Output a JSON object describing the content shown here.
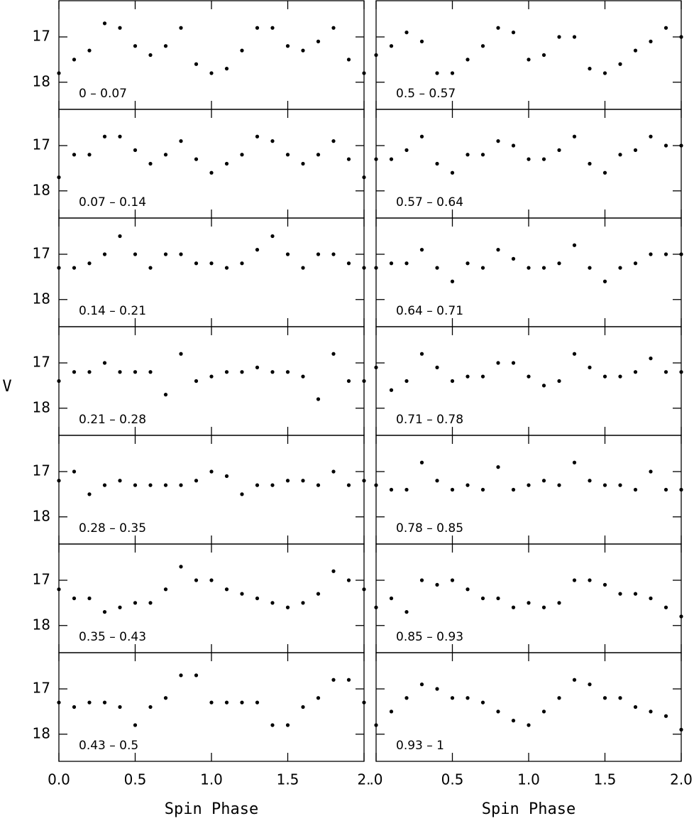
{
  "ylabel": "V",
  "chart_data": [
    {
      "type": "scatter",
      "annotation": "0 – 0.07",
      "ylim": [
        18.6,
        16.2
      ],
      "yticks": [
        17,
        18
      ],
      "ytick_labels": true,
      "xlim": [
        0,
        2
      ],
      "xticks": [
        0,
        0.5,
        1,
        1.5,
        2
      ],
      "x": [
        0,
        0.1,
        0.2,
        0.3,
        0.4,
        0.5,
        0.6,
        0.7,
        0.8,
        0.9,
        1,
        1.1,
        1.2,
        1.3,
        1.4,
        1.5,
        1.6,
        1.7,
        1.8,
        1.9,
        2
      ],
      "values": [
        17.8,
        17.5,
        17.3,
        16.7,
        16.8,
        17.2,
        17.4,
        17.2,
        16.8,
        17.6,
        17.8,
        17.7,
        17.3,
        16.8,
        16.8,
        17.2,
        17.3,
        17.1,
        16.8,
        17.5,
        17.8
      ]
    },
    {
      "type": "scatter",
      "annotation": "0.07 – 0.14",
      "ylim": [
        18.6,
        16.2
      ],
      "yticks": [
        17,
        18
      ],
      "ytick_labels": true,
      "xlim": [
        0,
        2
      ],
      "xticks": [
        0,
        0.5,
        1,
        1.5,
        2
      ],
      "x": [
        0,
        0.1,
        0.2,
        0.3,
        0.4,
        0.5,
        0.6,
        0.7,
        0.8,
        0.9,
        1,
        1.1,
        1.2,
        1.3,
        1.4,
        1.5,
        1.6,
        1.7,
        1.8,
        1.9,
        2
      ],
      "values": [
        17.7,
        17.2,
        17.2,
        16.8,
        16.8,
        17.1,
        17.4,
        17.2,
        16.9,
        17.3,
        17.6,
        17.4,
        17.2,
        16.8,
        16.9,
        17.2,
        17.4,
        17.2,
        16.9,
        17.3,
        17.7
      ]
    },
    {
      "type": "scatter",
      "annotation": "0.14 – 0.21",
      "ylim": [
        18.6,
        16.2
      ],
      "yticks": [
        17,
        18
      ],
      "ytick_labels": true,
      "xlim": [
        0,
        2
      ],
      "xticks": [
        0,
        0.5,
        1,
        1.5,
        2
      ],
      "x": [
        0,
        0.1,
        0.2,
        0.3,
        0.4,
        0.5,
        0.6,
        0.7,
        0.8,
        0.9,
        1,
        1.1,
        1.2,
        1.3,
        1.4,
        1.5,
        1.6,
        1.7,
        1.8,
        1.9,
        2
      ],
      "values": [
        17.3,
        17.3,
        17.2,
        17.0,
        16.6,
        17.0,
        17.3,
        17.0,
        17.0,
        17.2,
        17.2,
        17.3,
        17.2,
        16.9,
        16.6,
        17.0,
        17.3,
        17.0,
        17.0,
        17.2,
        17.3
      ]
    },
    {
      "type": "scatter",
      "annotation": "0.21 – 0.28",
      "ylim": [
        18.6,
        16.2
      ],
      "yticks": [
        17,
        18
      ],
      "ytick_labels": true,
      "xlim": [
        0,
        2
      ],
      "xticks": [
        0,
        0.5,
        1,
        1.5,
        2
      ],
      "x": [
        0,
        0.1,
        0.2,
        0.3,
        0.4,
        0.5,
        0.6,
        0.7,
        0.8,
        0.9,
        1,
        1.1,
        1.2,
        1.3,
        1.4,
        1.5,
        1.6,
        1.7,
        1.8,
        1.9,
        2
      ],
      "values": [
        17.4,
        17.2,
        17.2,
        17.0,
        17.2,
        17.2,
        17.2,
        17.7,
        16.8,
        17.4,
        17.3,
        17.2,
        17.2,
        17.1,
        17.2,
        17.2,
        17.3,
        17.8,
        16.8,
        17.4,
        17.4
      ]
    },
    {
      "type": "scatter",
      "annotation": "0.28 – 0.35",
      "ylim": [
        18.6,
        16.2
      ],
      "yticks": [
        17,
        18
      ],
      "ytick_labels": true,
      "xlim": [
        0,
        2
      ],
      "xticks": [
        0,
        0.5,
        1,
        1.5,
        2
      ],
      "x": [
        0,
        0.1,
        0.2,
        0.3,
        0.4,
        0.5,
        0.6,
        0.7,
        0.8,
        0.9,
        1,
        1.1,
        1.2,
        1.3,
        1.4,
        1.5,
        1.6,
        1.7,
        1.8,
        1.9,
        2
      ],
      "values": [
        17.2,
        17.0,
        17.5,
        17.3,
        17.2,
        17.3,
        17.3,
        17.3,
        17.3,
        17.2,
        17.0,
        17.1,
        17.5,
        17.3,
        17.3,
        17.2,
        17.2,
        17.3,
        17.0,
        17.3,
        17.2
      ]
    },
    {
      "type": "scatter",
      "annotation": "0.35 – 0.43",
      "ylim": [
        18.6,
        16.2
      ],
      "yticks": [
        17,
        18
      ],
      "ytick_labels": true,
      "xlim": [
        0,
        2
      ],
      "xticks": [
        0,
        0.5,
        1,
        1.5,
        2
      ],
      "x": [
        0,
        0.1,
        0.2,
        0.3,
        0.4,
        0.5,
        0.6,
        0.7,
        0.8,
        0.9,
        1,
        1.1,
        1.2,
        1.3,
        1.4,
        1.5,
        1.6,
        1.7,
        1.8,
        1.9,
        2
      ],
      "values": [
        17.2,
        17.4,
        17.4,
        17.7,
        17.6,
        17.5,
        17.5,
        17.2,
        16.7,
        17.0,
        17.0,
        17.2,
        17.3,
        17.4,
        17.5,
        17.6,
        17.5,
        17.3,
        16.8,
        17.0,
        17.2
      ]
    },
    {
      "type": "scatter",
      "annotation": "0.43 – 0.5",
      "ylim": [
        18.6,
        16.2
      ],
      "yticks": [
        17,
        18
      ],
      "ytick_labels": true,
      "xlim": [
        0,
        2
      ],
      "xticks": [
        {
          "value": 0,
          "label": "0.0"
        },
        0.5,
        {
          "value": 1,
          "label": "1.0"
        },
        1.5,
        {
          "value": 2,
          "label": "2."
        }
      ],
      "xlabel": "Spin Phase",
      "x": [
        0,
        0.1,
        0.2,
        0.3,
        0.4,
        0.5,
        0.6,
        0.7,
        0.8,
        0.9,
        1,
        1.1,
        1.2,
        1.3,
        1.4,
        1.5,
        1.6,
        1.7,
        1.8,
        1.9,
        2
      ],
      "values": [
        17.3,
        17.4,
        17.3,
        17.3,
        17.4,
        17.8,
        17.4,
        17.2,
        16.7,
        16.7,
        17.3,
        17.3,
        17.3,
        17.3,
        17.8,
        17.8,
        17.4,
        17.2,
        16.8,
        16.8,
        17.3
      ]
    },
    {
      "type": "scatter",
      "annotation": "0.5 – 0.57",
      "ylim": [
        18.6,
        16.2
      ],
      "yticks": [
        17,
        18
      ],
      "ytick_labels": false,
      "xlim": [
        0,
        2
      ],
      "xticks": [
        0,
        0.5,
        1,
        1.5,
        2
      ],
      "x": [
        0,
        0.1,
        0.2,
        0.3,
        0.4,
        0.5,
        0.6,
        0.7,
        0.8,
        0.9,
        1,
        1.1,
        1.2,
        1.3,
        1.4,
        1.5,
        1.6,
        1.7,
        1.8,
        1.9,
        2
      ],
      "values": [
        17.4,
        17.2,
        16.9,
        17.1,
        17.8,
        17.8,
        17.5,
        17.2,
        16.8,
        16.9,
        17.5,
        17.4,
        17.0,
        17.0,
        17.7,
        17.8,
        17.6,
        17.3,
        17.1,
        16.8,
        17.0
      ]
    },
    {
      "type": "scatter",
      "annotation": "0.57 – 0.64",
      "ylim": [
        18.6,
        16.2
      ],
      "yticks": [
        17,
        18
      ],
      "ytick_labels": false,
      "xlim": [
        0,
        2
      ],
      "xticks": [
        0,
        0.5,
        1,
        1.5,
        2
      ],
      "x": [
        0,
        0.1,
        0.2,
        0.3,
        0.4,
        0.5,
        0.6,
        0.7,
        0.8,
        0.9,
        1,
        1.1,
        1.2,
        1.3,
        1.4,
        1.5,
        1.6,
        1.7,
        1.8,
        1.9,
        2
      ],
      "values": [
        17.3,
        17.3,
        17.1,
        16.8,
        17.4,
        17.6,
        17.2,
        17.2,
        16.9,
        17.0,
        17.3,
        17.3,
        17.1,
        16.8,
        17.4,
        17.6,
        17.2,
        17.1,
        16.8,
        17.0,
        17.0
      ]
    },
    {
      "type": "scatter",
      "annotation": "0.64 – 0.71",
      "ylim": [
        18.6,
        16.2
      ],
      "yticks": [
        17,
        18
      ],
      "ytick_labels": false,
      "xlim": [
        0,
        2
      ],
      "xticks": [
        0,
        0.5,
        1,
        1.5,
        2
      ],
      "x": [
        0,
        0.1,
        0.2,
        0.3,
        0.4,
        0.5,
        0.6,
        0.7,
        0.8,
        0.9,
        1,
        1.1,
        1.2,
        1.3,
        1.4,
        1.5,
        1.6,
        1.7,
        1.8,
        1.9,
        2
      ],
      "values": [
        17.3,
        17.2,
        17.2,
        16.9,
        17.3,
        17.6,
        17.2,
        17.3,
        16.9,
        17.1,
        17.3,
        17.3,
        17.2,
        16.8,
        17.3,
        17.6,
        17.3,
        17.2,
        17.0,
        17.0,
        17.0
      ]
    },
    {
      "type": "scatter",
      "annotation": "0.71 – 0.78",
      "ylim": [
        18.6,
        16.2
      ],
      "yticks": [
        17,
        18
      ],
      "ytick_labels": false,
      "xlim": [
        0,
        2
      ],
      "xticks": [
        0,
        0.5,
        1,
        1.5,
        2
      ],
      "x": [
        0,
        0.1,
        0.2,
        0.3,
        0.4,
        0.5,
        0.6,
        0.7,
        0.8,
        0.9,
        1,
        1.1,
        1.2,
        1.3,
        1.4,
        1.5,
        1.6,
        1.7,
        1.8,
        1.9,
        2
      ],
      "values": [
        17.1,
        17.6,
        17.4,
        16.8,
        17.1,
        17.4,
        17.3,
        17.3,
        17.0,
        17.0,
        17.3,
        17.5,
        17.4,
        16.8,
        17.1,
        17.3,
        17.3,
        17.2,
        16.9,
        17.2,
        17.2
      ]
    },
    {
      "type": "scatter",
      "annotation": "0.78 – 0.85",
      "ylim": [
        18.6,
        16.2
      ],
      "yticks": [
        17,
        18
      ],
      "ytick_labels": false,
      "xlim": [
        0,
        2
      ],
      "xticks": [
        0,
        0.5,
        1,
        1.5,
        2
      ],
      "x": [
        0,
        0.1,
        0.2,
        0.3,
        0.4,
        0.5,
        0.6,
        0.7,
        0.8,
        0.9,
        1,
        1.1,
        1.2,
        1.3,
        1.4,
        1.5,
        1.6,
        1.7,
        1.8,
        1.9,
        2
      ],
      "values": [
        17.3,
        17.4,
        17.4,
        16.8,
        17.2,
        17.4,
        17.3,
        17.4,
        16.9,
        17.4,
        17.3,
        17.2,
        17.3,
        16.8,
        17.2,
        17.3,
        17.3,
        17.4,
        17.0,
        17.4,
        17.4
      ]
    },
    {
      "type": "scatter",
      "annotation": "0.85 – 0.93",
      "ylim": [
        18.6,
        16.2
      ],
      "yticks": [
        17,
        18
      ],
      "ytick_labels": false,
      "xlim": [
        0,
        2
      ],
      "xticks": [
        0,
        0.5,
        1,
        1.5,
        2
      ],
      "x": [
        0,
        0.1,
        0.2,
        0.3,
        0.4,
        0.5,
        0.6,
        0.7,
        0.8,
        0.9,
        1,
        1.1,
        1.2,
        1.3,
        1.4,
        1.5,
        1.6,
        1.7,
        1.8,
        1.9,
        2
      ],
      "values": [
        17.6,
        17.4,
        17.7,
        17.0,
        17.1,
        17.0,
        17.2,
        17.4,
        17.4,
        17.6,
        17.5,
        17.6,
        17.5,
        17.0,
        17.0,
        17.1,
        17.3,
        17.3,
        17.4,
        17.6,
        17.8
      ]
    },
    {
      "type": "scatter",
      "annotation": "0.93 – 1",
      "ylim": [
        18.6,
        16.2
      ],
      "yticks": [
        17,
        18
      ],
      "ytick_labels": false,
      "xlim": [
        0,
        2
      ],
      "xticks": [
        {
          "value": 0,
          "label": ".0"
        },
        0.5,
        {
          "value": 1,
          "label": "1.0"
        },
        1.5,
        {
          "value": 2,
          "label": "2.0"
        }
      ],
      "xlabel": "Spin Phase",
      "x": [
        0,
        0.1,
        0.2,
        0.3,
        0.4,
        0.5,
        0.6,
        0.7,
        0.8,
        0.9,
        1,
        1.1,
        1.2,
        1.3,
        1.4,
        1.5,
        1.6,
        1.7,
        1.8,
        1.9,
        2
      ],
      "values": [
        17.8,
        17.5,
        17.2,
        16.9,
        17.0,
        17.2,
        17.2,
        17.3,
        17.5,
        17.7,
        17.8,
        17.5,
        17.2,
        16.8,
        16.9,
        17.2,
        17.2,
        17.4,
        17.5,
        17.6,
        17.9
      ]
    }
  ]
}
